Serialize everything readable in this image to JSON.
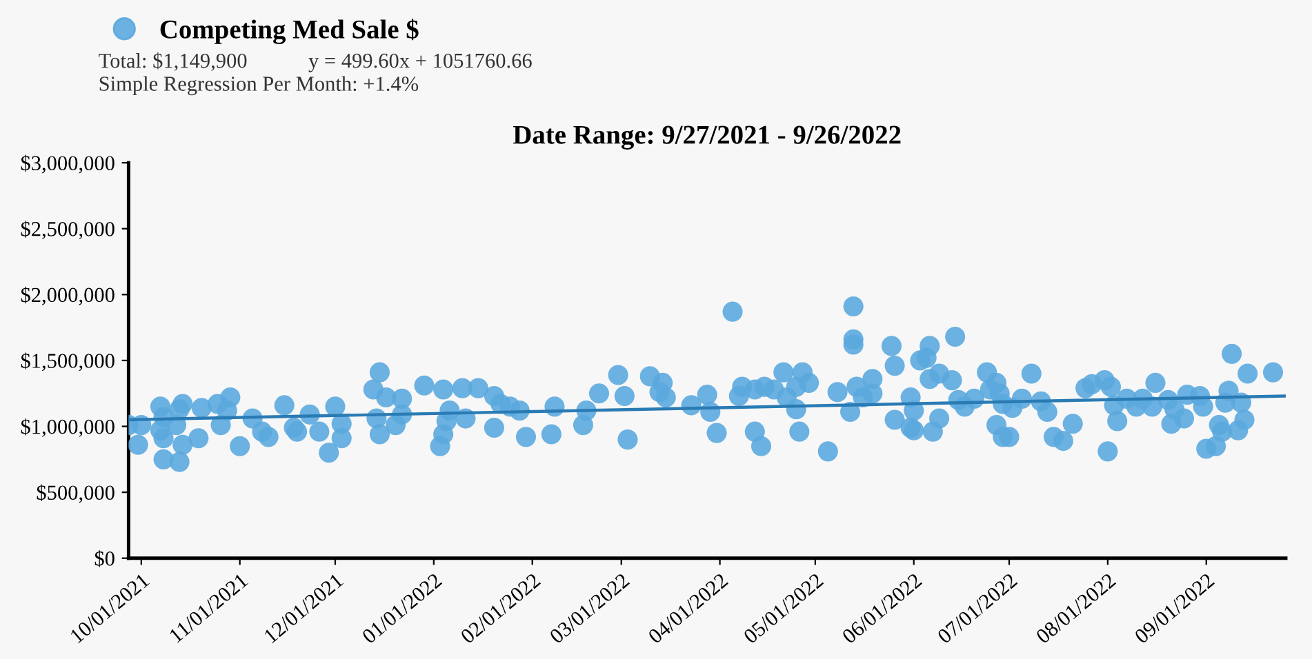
{
  "chart_data": {
    "type": "scatter",
    "title": "Date Range: 9/27/2021 - 9/26/2022",
    "annotations": [
      "Total: $1,149,900",
      "y = 499.60x + 1051760.66",
      "Simple Regression Per Month: +1.4%"
    ],
    "series": [
      {
        "name": "Competing Med Sale $",
        "color": "#5ba8de",
        "marker": "circle",
        "x": [
          "2021-09-27",
          "2021-09-30",
          "2021-10-01",
          "2021-10-07",
          "2021-10-08",
          "2021-10-07",
          "2021-10-08",
          "2021-10-08",
          "2021-10-13",
          "2021-10-12",
          "2021-10-13",
          "2021-10-14",
          "2021-10-14",
          "2021-10-19",
          "2021-10-20",
          "2021-10-25",
          "2021-10-26",
          "2021-10-29",
          "2021-10-28",
          "2021-11-01",
          "2021-11-05",
          "2021-11-08",
          "2021-11-10",
          "2021-11-15",
          "2021-11-18",
          "2021-11-19",
          "2021-11-23",
          "2021-11-26",
          "2021-11-29",
          "2021-12-01",
          "2021-12-03",
          "2021-12-03",
          "2021-12-13",
          "2021-12-15",
          "2021-12-14",
          "2021-12-15",
          "2021-12-17",
          "2021-12-20",
          "2021-12-22",
          "2021-12-22",
          "2021-12-29",
          "2022-01-04",
          "2022-01-03",
          "2022-01-04",
          "2022-01-06",
          "2022-01-05",
          "2022-01-10",
          "2022-01-11",
          "2022-01-15",
          "2022-01-20",
          "2022-01-20",
          "2022-01-22",
          "2022-01-25",
          "2022-01-28",
          "2022-01-30",
          "2022-02-07",
          "2022-02-08",
          "2022-02-17",
          "2022-02-18",
          "2022-02-22",
          "2022-02-28",
          "2022-03-02",
          "2022-03-03",
          "2022-03-10",
          "2022-03-14",
          "2022-03-13",
          "2022-03-15",
          "2022-03-23",
          "2022-03-28",
          "2022-03-29",
          "2022-03-31",
          "2022-04-05",
          "2022-04-08",
          "2022-04-07",
          "2022-04-12",
          "2022-04-14",
          "2022-04-12",
          "2022-04-15",
          "2022-04-18",
          "2022-04-21",
          "2022-04-22",
          "2022-04-25",
          "2022-04-27",
          "2022-04-29",
          "2022-04-25",
          "2022-04-26",
          "2022-05-05",
          "2022-05-08",
          "2022-05-12",
          "2022-05-13",
          "2022-05-13",
          "2022-05-13",
          "2022-05-14",
          "2022-05-16",
          "2022-05-19",
          "2022-05-19",
          "2022-05-25",
          "2022-05-26",
          "2022-05-26",
          "2022-05-31",
          "2022-05-31",
          "2022-06-01",
          "2022-06-01",
          "2022-06-03",
          "2022-06-06",
          "2022-06-05",
          "2022-06-06",
          "2022-06-09",
          "2022-06-13",
          "2022-06-09",
          "2022-06-07",
          "2022-06-14",
          "2022-06-15",
          "2022-06-17",
          "2022-06-20",
          "2022-06-24",
          "2022-06-25",
          "2022-06-27",
          "2022-06-28",
          "2022-06-29",
          "2022-07-02",
          "2022-07-05",
          "2022-06-27",
          "2022-06-29",
          "2022-07-01",
          "2022-07-08",
          "2022-07-11",
          "2022-07-13",
          "2022-07-15",
          "2022-07-18",
          "2022-07-21",
          "2022-07-25",
          "2022-07-27",
          "2022-07-31",
          "2022-08-02",
          "2022-08-03",
          "2022-08-04",
          "2022-08-01",
          "2022-08-07",
          "2022-08-10",
          "2022-08-12",
          "2022-08-15",
          "2022-08-16",
          "2022-08-20",
          "2022-08-22",
          "2022-08-21",
          "2022-08-25",
          "2022-08-26",
          "2022-08-30",
          "2022-08-31",
          "2022-09-01",
          "2022-09-05",
          "2022-09-04",
          "2022-09-06",
          "2022-09-08",
          "2022-09-07",
          "2022-09-09",
          "2022-09-12",
          "2022-09-13",
          "2022-09-11",
          "2022-09-14",
          "2022-09-22"
        ],
        "values": [
          1010000,
          860000,
          1010000,
          1150000,
          1070000,
          970000,
          910000,
          750000,
          730000,
          1010000,
          1130000,
          1170000,
          860000,
          910000,
          1140000,
          1170000,
          1010000,
          1220000,
          1120000,
          850000,
          1060000,
          960000,
          920000,
          1160000,
          990000,
          960000,
          1090000,
          960000,
          800000,
          1150000,
          1020000,
          910000,
          1280000,
          1410000,
          1060000,
          940000,
          1220000,
          1010000,
          1210000,
          1090000,
          1310000,
          1280000,
          850000,
          940000,
          1120000,
          1040000,
          1290000,
          1060000,
          1290000,
          1230000,
          990000,
          1170000,
          1150000,
          1120000,
          920000,
          940000,
          1150000,
          1010000,
          1120000,
          1250000,
          1390000,
          1230000,
          900000,
          1380000,
          1330000,
          1260000,
          1220000,
          1160000,
          1240000,
          1110000,
          950000,
          1870000,
          1300000,
          1230000,
          960000,
          850000,
          1280000,
          1300000,
          1280000,
          1410000,
          1220000,
          1300000,
          1410000,
          1330000,
          1130000,
          960000,
          810000,
          1260000,
          1110000,
          1910000,
          1660000,
          1620000,
          1300000,
          1220000,
          1360000,
          1250000,
          1610000,
          1460000,
          1050000,
          1220000,
          990000,
          1120000,
          970000,
          1500000,
          1610000,
          1520000,
          1360000,
          1400000,
          1350000,
          1060000,
          960000,
          1680000,
          1200000,
          1150000,
          1210000,
          1410000,
          1280000,
          1330000,
          1250000,
          1170000,
          1140000,
          1210000,
          1010000,
          920000,
          920000,
          1400000,
          1190000,
          1110000,
          920000,
          890000,
          1020000,
          1290000,
          1320000,
          1350000,
          1300000,
          1160000,
          1040000,
          810000,
          1210000,
          1150000,
          1210000,
          1150000,
          1330000,
          1200000,
          1130000,
          1020000,
          1060000,
          1240000,
          1230000,
          1150000,
          830000,
          1010000,
          850000,
          960000,
          1270000,
          1180000,
          1550000,
          1180000,
          1050000,
          970000,
          1400000,
          1410000
        ]
      },
      {
        "type": "line",
        "color": "#2a7bb4",
        "x": [
          "2021-09-27",
          "2022-09-26"
        ],
        "values": [
          1050000,
          1230000
        ]
      }
    ],
    "xlim": [
      "2021-09-27",
      "2022-09-26"
    ],
    "xticks": [
      {
        "value": "2021-10-01",
        "label": "10/01/2021"
      },
      {
        "value": "2021-11-01",
        "label": "11/01/2021"
      },
      {
        "value": "2021-12-01",
        "label": "12/01/2021"
      },
      {
        "value": "2022-01-01",
        "label": "01/01/2022"
      },
      {
        "value": "2022-02-01",
        "label": "02/01/2022"
      },
      {
        "value": "2022-03-01",
        "label": "03/01/2022"
      },
      {
        "value": "2022-04-01",
        "label": "04/01/2022"
      },
      {
        "value": "2022-05-01",
        "label": "05/01/2022"
      },
      {
        "value": "2022-06-01",
        "label": "06/01/2022"
      },
      {
        "value": "2022-07-01",
        "label": "07/01/2022"
      },
      {
        "value": "2022-08-01",
        "label": "08/01/2022"
      },
      {
        "value": "2022-09-01",
        "label": "09/01/2022"
      }
    ],
    "ylim": [
      0,
      3000000
    ],
    "yticks": [
      {
        "value": 0,
        "label": "$0"
      },
      {
        "value": 500000,
        "label": "$500,000"
      },
      {
        "value": 1000000,
        "label": "$1,000,000"
      },
      {
        "value": 1500000,
        "label": "$1,500,000"
      },
      {
        "value": 2000000,
        "label": "$2,000,000"
      },
      {
        "value": 2500000,
        "label": "$2,500,000"
      },
      {
        "value": 3000000,
        "label": "$3,000,000"
      }
    ],
    "legend": "top left"
  }
}
